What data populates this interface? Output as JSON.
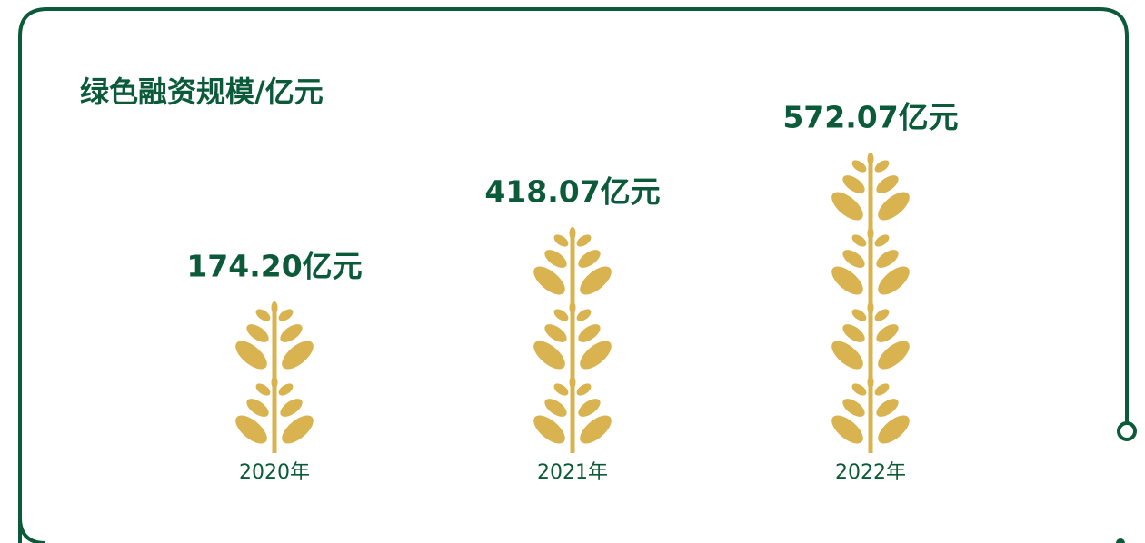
{
  "chart_data": {
    "type": "pictograph",
    "title": "绿色融资规模/亿元",
    "categories": [
      "2020年",
      "2021年",
      "2022年"
    ],
    "values": [
      174.2,
      418.07,
      572.07
    ],
    "value_labels": [
      "174.20亿元",
      "418.07亿元",
      "572.07亿元"
    ],
    "icon_counts": [
      2,
      3,
      4
    ],
    "color": "#d8b350"
  }
}
